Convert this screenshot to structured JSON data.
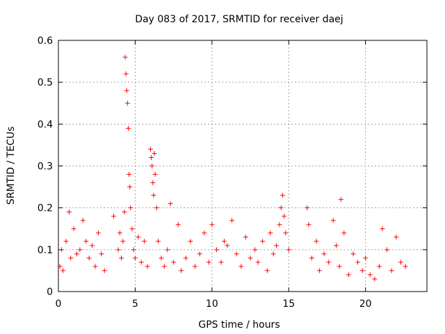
{
  "chart_data": {
    "type": "scatter",
    "title": "Day 083 of 2017, SRMTID for receiver daej",
    "xlabel": "GPS time / hours",
    "ylabel": "SRMTID / TECUs",
    "xlim": [
      0,
      24
    ],
    "ylim": [
      0,
      0.6
    ],
    "xticks": [
      "0",
      "5",
      "10",
      "15",
      "20"
    ],
    "yticks": [
      "0",
      "0.1",
      "0.2",
      "0.3",
      "0.4",
      "0.5",
      "0.6"
    ],
    "grid": true,
    "marker": "+",
    "series": [
      {
        "name": "SRMTID",
        "color": "#ff0000",
        "x": [
          0.1,
          0.2,
          0.3,
          0.5,
          0.7,
          0.8,
          1.0,
          1.2,
          1.4,
          1.6,
          1.8,
          2.0,
          2.2,
          2.4,
          2.6,
          2.8,
          3.0,
          3.6,
          3.9,
          4.0,
          4.1,
          4.2,
          4.3,
          4.35,
          4.4,
          4.45,
          4.5,
          4.55,
          4.6,
          4.65,
          4.7,
          4.8,
          4.9,
          5.0,
          5.2,
          5.4,
          5.6,
          5.8,
          6.0,
          6.05,
          6.1,
          6.15,
          6.2,
          6.25,
          6.3,
          6.4,
          6.5,
          6.7,
          6.9,
          7.1,
          7.3,
          7.5,
          7.8,
          8.0,
          8.3,
          8.6,
          8.9,
          9.2,
          9.5,
          9.8,
          10.0,
          10.3,
          10.6,
          10.8,
          11.0,
          11.3,
          11.6,
          11.9,
          12.2,
          12.5,
          12.8,
          13.0,
          13.3,
          13.6,
          13.8,
          14.0,
          14.2,
          14.4,
          14.5,
          14.6,
          14.7,
          14.8,
          15.0,
          16.2,
          16.3,
          16.5,
          16.8,
          17.0,
          17.3,
          17.6,
          17.9,
          18.1,
          18.3,
          18.4,
          18.6,
          18.9,
          19.2,
          19.5,
          19.8,
          20.0,
          20.3,
          20.6,
          20.9,
          21.1,
          21.4,
          21.7,
          22.0,
          22.3,
          22.6
        ],
        "y": [
          0.06,
          0.1,
          0.05,
          0.12,
          0.19,
          0.08,
          0.15,
          0.09,
          0.1,
          0.17,
          0.12,
          0.08,
          0.11,
          0.06,
          0.14,
          0.09,
          0.05,
          0.18,
          0.1,
          0.14,
          0.08,
          0.12,
          0.19,
          0.56,
          0.52,
          0.48,
          0.45,
          0.39,
          0.28,
          0.25,
          0.2,
          0.15,
          0.1,
          0.08,
          0.13,
          0.07,
          0.12,
          0.06,
          0.34,
          0.32,
          0.3,
          0.26,
          0.23,
          0.33,
          0.28,
          0.2,
          0.12,
          0.08,
          0.06,
          0.1,
          0.21,
          0.07,
          0.16,
          0.05,
          0.08,
          0.12,
          0.06,
          0.09,
          0.14,
          0.07,
          0.16,
          0.1,
          0.07,
          0.12,
          0.11,
          0.17,
          0.09,
          0.06,
          0.13,
          0.08,
          0.1,
          0.07,
          0.12,
          0.05,
          0.14,
          0.09,
          0.11,
          0.16,
          0.2,
          0.23,
          0.18,
          0.14,
          0.1,
          0.2,
          0.16,
          0.08,
          0.12,
          0.05,
          0.09,
          0.07,
          0.17,
          0.11,
          0.06,
          0.22,
          0.14,
          0.04,
          0.09,
          0.07,
          0.05,
          0.08,
          0.04,
          0.03,
          0.06,
          0.15,
          0.1,
          0.05,
          0.13,
          0.07,
          0.06
        ]
      }
    ]
  }
}
